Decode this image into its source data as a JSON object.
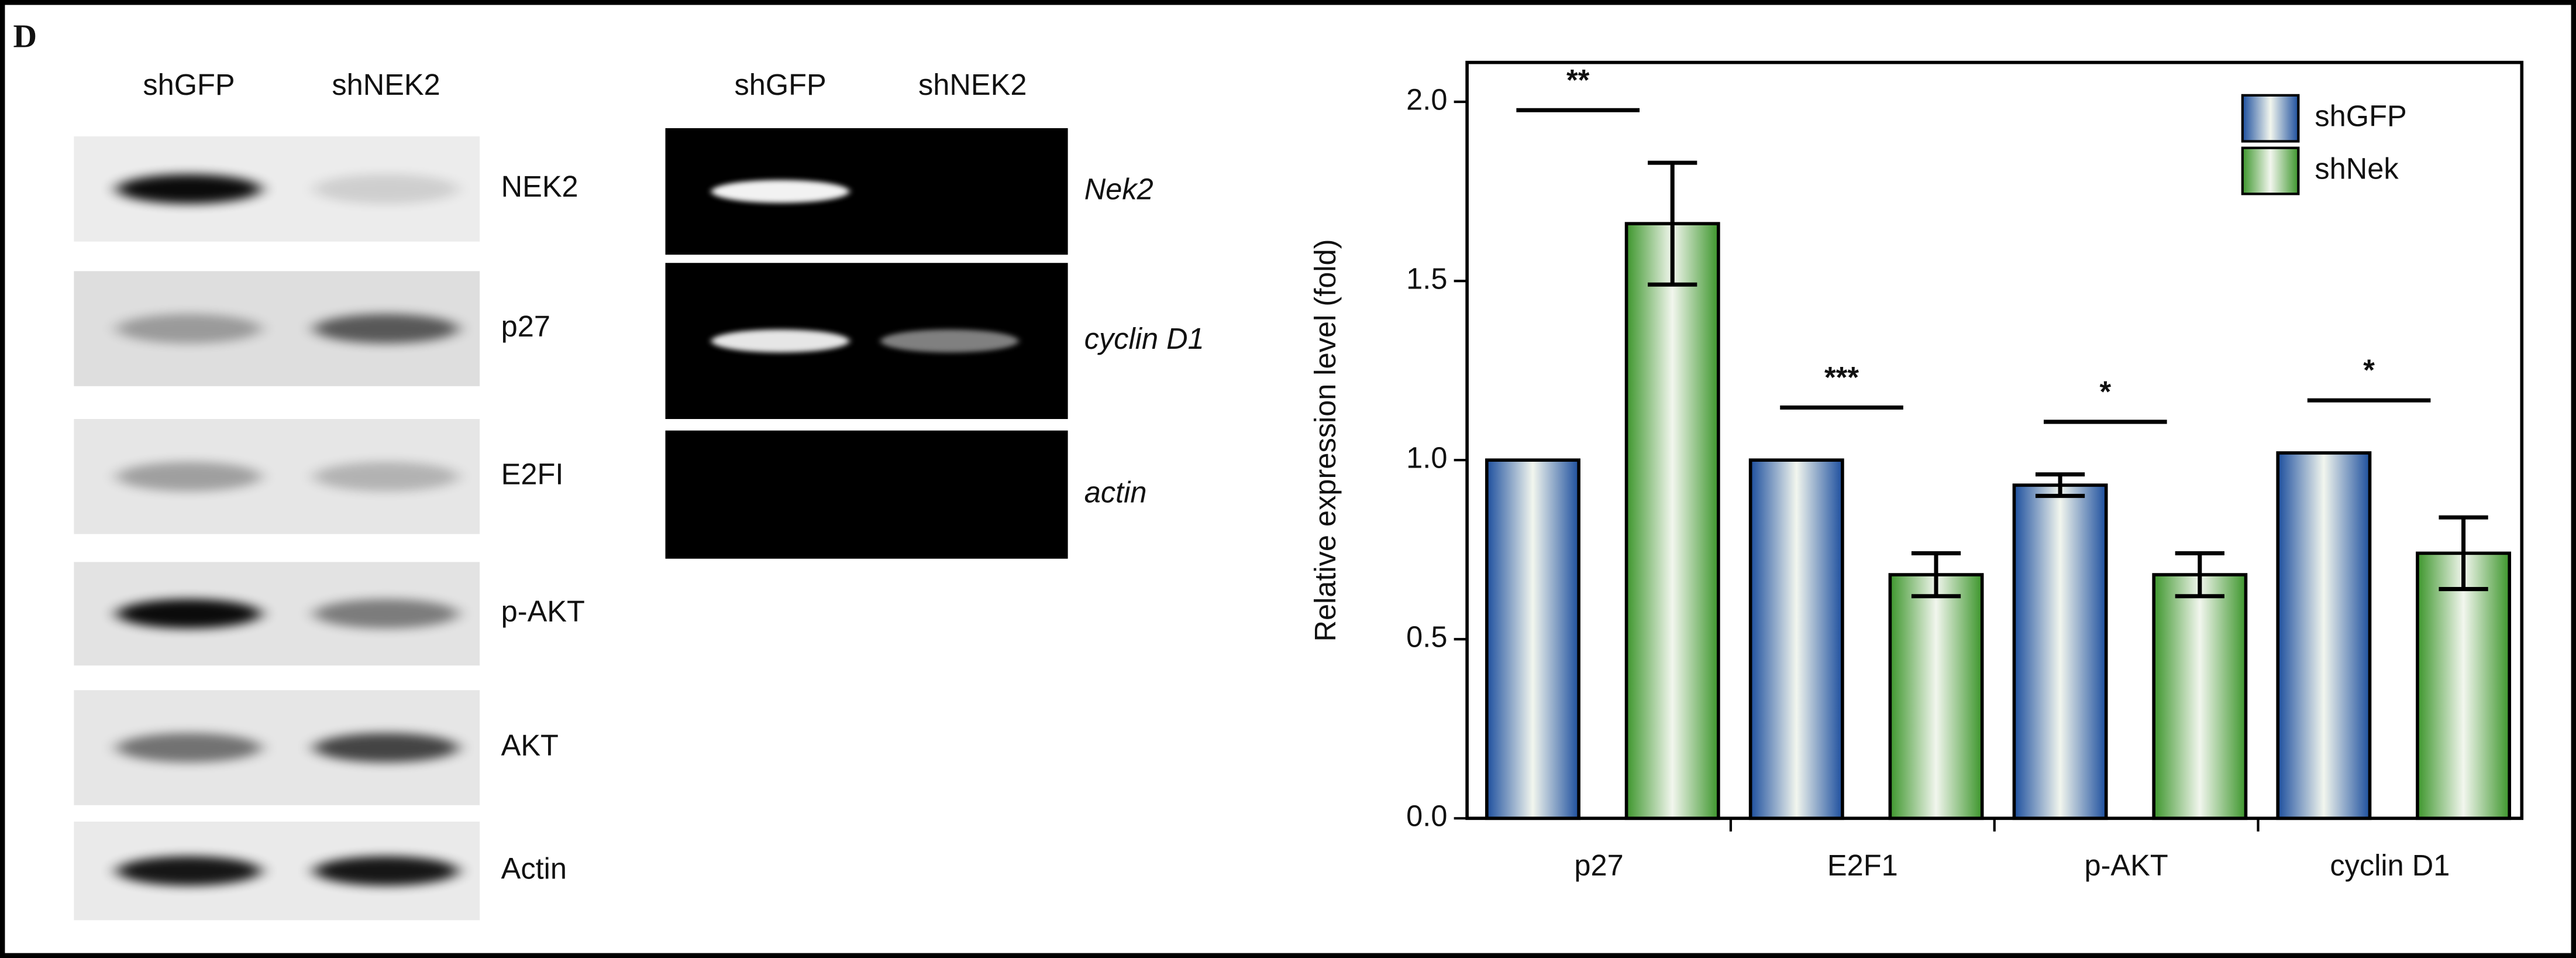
{
  "panel_label": "D",
  "western_blot": {
    "columns": [
      "shGFP",
      "shNEK2"
    ],
    "rows": [
      "NEK2",
      "p27",
      "E2FI",
      "p-AKT",
      "AKT",
      "Actin"
    ]
  },
  "rt_pcr": {
    "columns": [
      "shGFP",
      "shNEK2"
    ],
    "rows": [
      "Nek2",
      "cyclin D1",
      "actin"
    ]
  },
  "chart_data": {
    "type": "bar",
    "ylabel": "Relative expression level (fold)",
    "categories": [
      "p27",
      "E2F1",
      "p-AKT",
      "cyclin D1"
    ],
    "series": [
      {
        "name": "shGFP",
        "color": "#1d4f9e",
        "values": [
          1.0,
          1.0,
          0.93,
          1.02
        ],
        "errors": [
          null,
          null,
          0.03,
          null
        ]
      },
      {
        "name": "shNek",
        "color": "#3d962c",
        "values": [
          1.66,
          0.68,
          0.68,
          0.74
        ],
        "errors": [
          0.17,
          0.06,
          0.06,
          0.1
        ]
      }
    ],
    "significance": [
      "**",
      "***",
      "*",
      "*"
    ],
    "ylim": [
      0,
      2.11
    ],
    "yticks": [
      {
        "value": 0,
        "label": "0.0"
      },
      {
        "value": 0.5,
        "label": "0.5"
      },
      {
        "value": 1,
        "label": "1.0"
      },
      {
        "value": 1.5,
        "label": "1.5"
      },
      {
        "value": 2,
        "label": "2.0"
      }
    ],
    "legend": "upper right"
  }
}
